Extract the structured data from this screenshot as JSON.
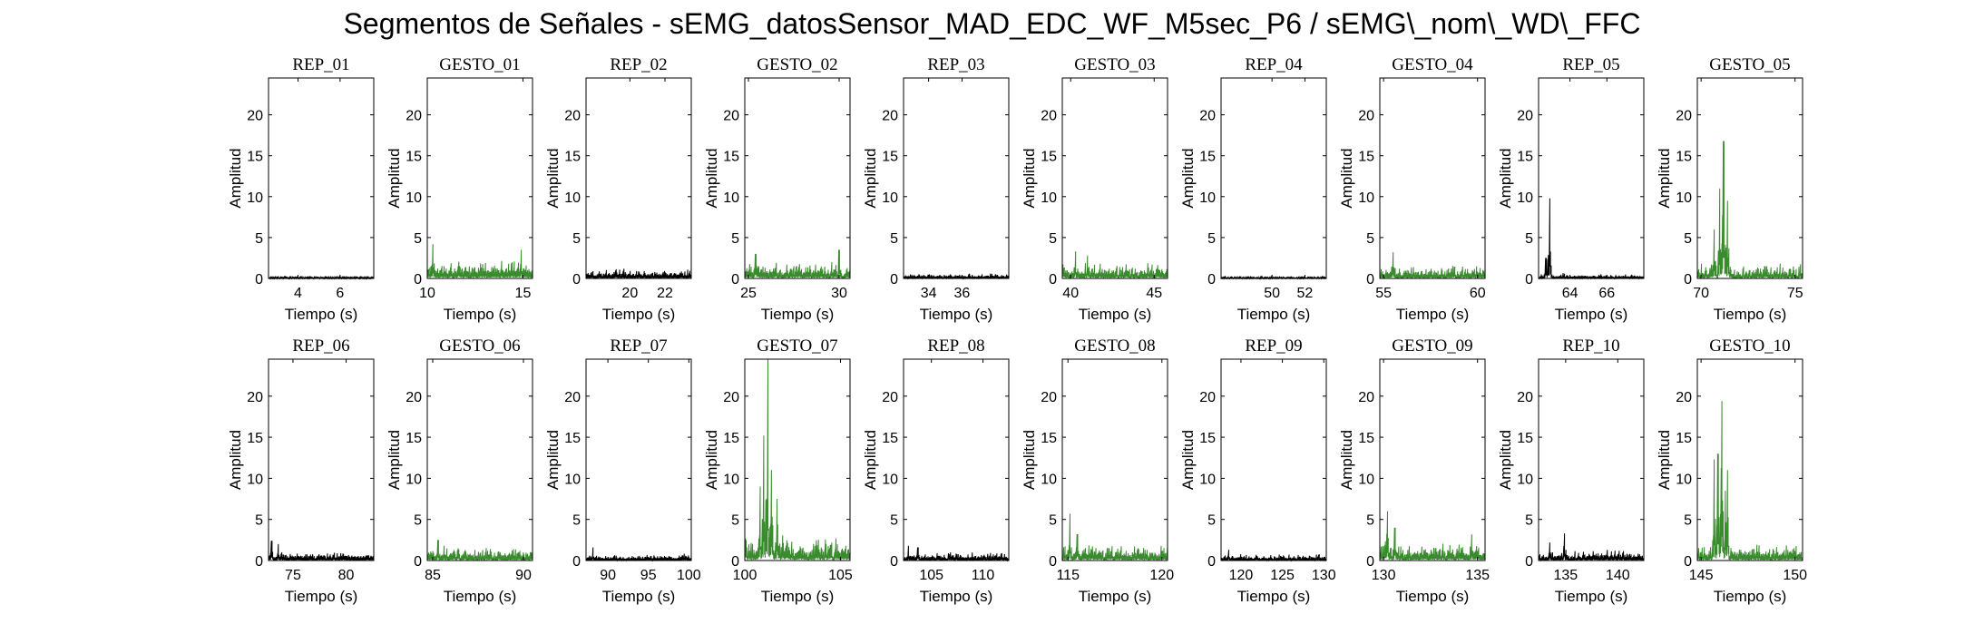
{
  "figure": {
    "title": "Segmentos de Señales - sEMG_datosSensor_MAD_EDC_WF_M5sec_P6 / sEMG\\_nom\\_WD\\_FFC"
  },
  "colors": {
    "rep": "#000000",
    "gesto": "#3a8a2e",
    "axis": "#000000"
  },
  "chart_data": [
    {
      "type": "area",
      "title": "REP_01",
      "xlabel": "Tiempo (s)",
      "ylabel": "Amplitud",
      "xlim": [
        2.6,
        7.6
      ],
      "ylim": [
        0,
        24.5
      ],
      "xticks": [
        4,
        6
      ],
      "yticks": [
        0,
        5,
        10,
        15,
        20
      ],
      "color": "#000000",
      "base": 0.15,
      "noise": 0.15,
      "spikes": []
    },
    {
      "type": "area",
      "title": "GESTO_01",
      "xlabel": "Tiempo (s)",
      "ylabel": "Amplitud",
      "xlim": [
        10,
        15.5
      ],
      "ylim": [
        0,
        24.5
      ],
      "xticks": [
        10,
        15
      ],
      "yticks": [
        0,
        5,
        10,
        15,
        20
      ],
      "color": "#3a8a2e",
      "base": 1.0,
      "noise": 1.6,
      "spikes": [
        [
          10.3,
          4.2
        ],
        [
          14.9,
          3.5
        ]
      ]
    },
    {
      "type": "area",
      "title": "REP_02",
      "xlabel": "Tiempo (s)",
      "ylabel": "Amplitud",
      "xlim": [
        17.5,
        23.5
      ],
      "ylim": [
        0,
        24.5
      ],
      "xticks": [
        20,
        22
      ],
      "yticks": [
        0,
        5,
        10,
        15,
        20
      ],
      "color": "#000000",
      "base": 0.5,
      "noise": 0.8,
      "spikes": []
    },
    {
      "type": "area",
      "title": "GESTO_02",
      "xlabel": "Tiempo (s)",
      "ylabel": "Amplitud",
      "xlim": [
        24.8,
        30.6
      ],
      "ylim": [
        0,
        24.5
      ],
      "xticks": [
        25,
        30
      ],
      "yticks": [
        0,
        5,
        10,
        15,
        20
      ],
      "color": "#3a8a2e",
      "base": 0.8,
      "noise": 1.5,
      "spikes": [
        [
          25.4,
          3.0
        ],
        [
          30.0,
          3.5
        ]
      ]
    },
    {
      "type": "area",
      "title": "REP_03",
      "xlabel": "Tiempo (s)",
      "ylabel": "Amplitud",
      "xlim": [
        32.5,
        38.8
      ],
      "ylim": [
        0,
        24.5
      ],
      "xticks": [
        34,
        36
      ],
      "yticks": [
        0,
        5,
        10,
        15,
        20
      ],
      "color": "#000000",
      "base": 0.3,
      "noise": 0.4,
      "spikes": []
    },
    {
      "type": "area",
      "title": "GESTO_03",
      "xlabel": "Tiempo (s)",
      "ylabel": "Amplitud",
      "xlim": [
        39.5,
        45.8
      ],
      "ylim": [
        0,
        24.5
      ],
      "xticks": [
        40,
        45
      ],
      "yticks": [
        0,
        5,
        10,
        15,
        20
      ],
      "color": "#3a8a2e",
      "base": 0.7,
      "noise": 1.5,
      "spikes": [
        [
          40.3,
          3.3
        ],
        [
          41.0,
          2.8
        ]
      ]
    },
    {
      "type": "area",
      "title": "REP_04",
      "xlabel": "Tiempo (s)",
      "ylabel": "Amplitud",
      "xlim": [
        46.9,
        53.3
      ],
      "ylim": [
        0,
        24.5
      ],
      "xticks": [
        50,
        52
      ],
      "yticks": [
        0,
        5,
        10,
        15,
        20
      ],
      "color": "#000000",
      "base": 0.1,
      "noise": 0.2,
      "spikes": []
    },
    {
      "type": "area",
      "title": "GESTO_04",
      "xlabel": "Tiempo (s)",
      "ylabel": "Amplitud",
      "xlim": [
        54.8,
        60.4
      ],
      "ylim": [
        0,
        24.5
      ],
      "xticks": [
        55,
        60
      ],
      "yticks": [
        0,
        5,
        10,
        15,
        20
      ],
      "color": "#3a8a2e",
      "base": 0.6,
      "noise": 1.4,
      "spikes": [
        [
          55.5,
          3.2
        ]
      ]
    },
    {
      "type": "area",
      "title": "REP_05",
      "xlabel": "Tiempo (s)",
      "ylabel": "Amplitud",
      "xlim": [
        62.3,
        68.0
      ],
      "ylim": [
        0,
        24.5
      ],
      "xticks": [
        64,
        66
      ],
      "yticks": [
        0,
        5,
        10,
        15,
        20
      ],
      "color": "#000000",
      "base": 0.2,
      "noise": 0.5,
      "spikes": [
        [
          62.9,
          9.8
        ],
        [
          62.7,
          2.5
        ]
      ]
    },
    {
      "type": "area",
      "title": "GESTO_05",
      "xlabel": "Tiempo (s)",
      "ylabel": "Amplitud",
      "xlim": [
        69.8,
        75.4
      ],
      "ylim": [
        0,
        24.5
      ],
      "xticks": [
        70,
        75
      ],
      "yticks": [
        0,
        5,
        10,
        15,
        20
      ],
      "color": "#3a8a2e",
      "base": 0.6,
      "noise": 1.5,
      "spikes": [
        [
          71.2,
          16.8
        ],
        [
          71.0,
          11.0
        ],
        [
          71.4,
          9.5
        ],
        [
          70.7,
          6.0
        ]
      ]
    },
    {
      "type": "area",
      "title": "REP_06",
      "xlabel": "Tiempo (s)",
      "ylabel": "Amplitud",
      "xlim": [
        72.7,
        82.6
      ],
      "ylim": [
        0,
        24.5
      ],
      "xticks": [
        75,
        80
      ],
      "yticks": [
        0,
        5,
        10,
        15,
        20
      ],
      "color": "#000000",
      "base": 0.5,
      "noise": 0.7,
      "spikes": [
        [
          73.0,
          2.4
        ],
        [
          73.6,
          2.0
        ]
      ]
    },
    {
      "type": "area",
      "title": "GESTO_06",
      "xlabel": "Tiempo (s)",
      "ylabel": "Amplitud",
      "xlim": [
        84.7,
        90.5
      ],
      "ylim": [
        0,
        24.5
      ],
      "xticks": [
        85,
        90
      ],
      "yticks": [
        0,
        5,
        10,
        15,
        20
      ],
      "color": "#3a8a2e",
      "base": 0.7,
      "noise": 1.2,
      "spikes": [
        [
          85.3,
          2.5
        ]
      ]
    },
    {
      "type": "area",
      "title": "REP_07",
      "xlabel": "Tiempo (s)",
      "ylabel": "Amplitud",
      "xlim": [
        87.3,
        100.3
      ],
      "ylim": [
        0,
        24.5
      ],
      "xticks": [
        90,
        95,
        100
      ],
      "yticks": [
        0,
        5,
        10,
        15,
        20
      ],
      "color": "#000000",
      "base": 0.3,
      "noise": 0.6,
      "spikes": [
        [
          88.2,
          1.6
        ]
      ]
    },
    {
      "type": "area",
      "title": "GESTO_07",
      "xlabel": "Tiempo (s)",
      "ylabel": "Amplitud",
      "xlim": [
        100,
        105.5
      ],
      "ylim": [
        0,
        24.5
      ],
      "xticks": [
        100,
        105
      ],
      "yticks": [
        0,
        5,
        10,
        15,
        20
      ],
      "color": "#3a8a2e",
      "base": 1.0,
      "noise": 2.5,
      "spikes": [
        [
          101.2,
          24.5
        ],
        [
          101.0,
          15.2
        ],
        [
          101.4,
          11.0
        ],
        [
          100.8,
          9.0
        ],
        [
          101.7,
          7.5
        ]
      ]
    },
    {
      "type": "area",
      "title": "REP_08",
      "xlabel": "Tiempo (s)",
      "ylabel": "Amplitud",
      "xlim": [
        102.3,
        112.5
      ],
      "ylim": [
        0,
        24.5
      ],
      "xticks": [
        105,
        110
      ],
      "yticks": [
        0,
        5,
        10,
        15,
        20
      ],
      "color": "#000000",
      "base": 0.4,
      "noise": 0.8,
      "spikes": [
        [
          102.8,
          1.8
        ],
        [
          103.7,
          1.6
        ]
      ]
    },
    {
      "type": "area",
      "title": "GESTO_08",
      "xlabel": "Tiempo (s)",
      "ylabel": "Amplitud",
      "xlim": [
        114.7,
        120.3
      ],
      "ylim": [
        0,
        24.5
      ],
      "xticks": [
        115,
        120
      ],
      "yticks": [
        0,
        5,
        10,
        15,
        20
      ],
      "color": "#3a8a2e",
      "base": 0.8,
      "noise": 1.5,
      "spikes": [
        [
          115.1,
          5.7
        ],
        [
          115.5,
          3.2
        ]
      ]
    },
    {
      "type": "area",
      "title": "REP_09",
      "xlabel": "Tiempo (s)",
      "ylabel": "Amplitud",
      "xlim": [
        117.6,
        130.3
      ],
      "ylim": [
        0,
        24.5
      ],
      "xticks": [
        120,
        125,
        130
      ],
      "yticks": [
        0,
        5,
        10,
        15,
        20
      ],
      "color": "#000000",
      "base": 0.3,
      "noise": 0.6,
      "spikes": [
        [
          118.5,
          1.3
        ]
      ]
    },
    {
      "type": "area",
      "title": "GESTO_09",
      "xlabel": "Tiempo (s)",
      "ylabel": "Amplitud",
      "xlim": [
        129.8,
        135.4
      ],
      "ylim": [
        0,
        24.5
      ],
      "xticks": [
        130,
        135
      ],
      "yticks": [
        0,
        5,
        10,
        15,
        20
      ],
      "color": "#3a8a2e",
      "base": 0.9,
      "noise": 1.6,
      "spikes": [
        [
          130.2,
          6.0
        ],
        [
          130.6,
          4.0
        ],
        [
          134.7,
          3.2
        ]
      ]
    },
    {
      "type": "area",
      "title": "REP_10",
      "xlabel": "Tiempo (s)",
      "ylabel": "Amplitud",
      "xlim": [
        132.4,
        142.5
      ],
      "ylim": [
        0,
        24.5
      ],
      "xticks": [
        135,
        140
      ],
      "yticks": [
        0,
        5,
        10,
        15,
        20
      ],
      "color": "#000000",
      "base": 0.5,
      "noise": 1.0,
      "spikes": [
        [
          134.9,
          3.3
        ],
        [
          133.5,
          2.2
        ]
      ]
    },
    {
      "type": "area",
      "title": "GESTO_10",
      "xlabel": "Tiempo (s)",
      "ylabel": "Amplitud",
      "xlim": [
        144.8,
        150.4
      ],
      "ylim": [
        0,
        24.5
      ],
      "xticks": [
        145,
        150
      ],
      "yticks": [
        0,
        5,
        10,
        15,
        20
      ],
      "color": "#3a8a2e",
      "base": 0.8,
      "noise": 1.5,
      "spikes": [
        [
          146.1,
          19.4
        ],
        [
          145.9,
          13.0
        ],
        [
          145.7,
          12.3
        ],
        [
          146.4,
          11.0
        ],
        [
          146.3,
          8.5
        ]
      ]
    }
  ]
}
